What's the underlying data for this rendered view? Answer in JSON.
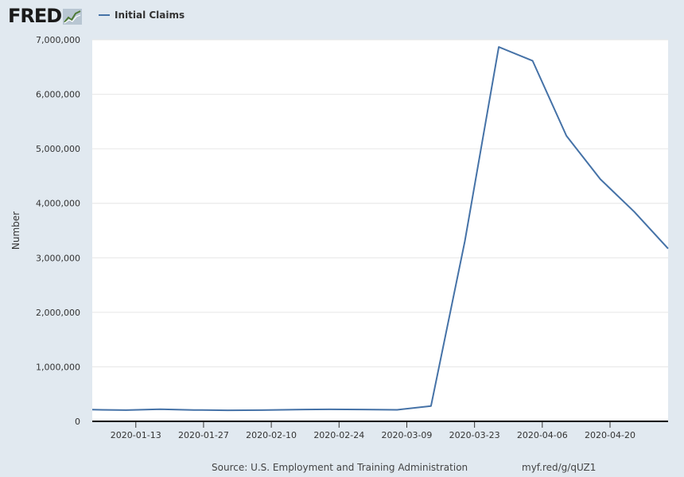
{
  "header": {
    "logo_text": "FRED",
    "logo_icon": "chart-line-icon",
    "legend_label": "Initial Claims",
    "series_color": "#4572a7"
  },
  "footer": {
    "source": "Source: U.S. Employment and Training Administration",
    "link": "myf.red/g/qUZ1"
  },
  "chart_data": {
    "type": "line",
    "title": "",
    "xlabel": "",
    "ylabel": "Number",
    "ylim": [
      0,
      7000000
    ],
    "yticks": [
      0,
      1000000,
      2000000,
      3000000,
      4000000,
      5000000,
      6000000,
      7000000
    ],
    "ytick_labels": [
      "0",
      "1,000,000",
      "2,000,000",
      "3,000,000",
      "4,000,000",
      "5,000,000",
      "6,000,000",
      "7,000,000"
    ],
    "xlim": [
      "2020-01-04",
      "2020-05-02"
    ],
    "xticks": [
      "2020-01-13",
      "2020-01-27",
      "2020-02-10",
      "2020-02-24",
      "2020-03-09",
      "2020-03-23",
      "2020-04-06",
      "2020-04-20"
    ],
    "grid": true,
    "legend": "top-left",
    "series": [
      {
        "name": "Initial Claims",
        "color": "#4572a7",
        "x": [
          "2020-01-04",
          "2020-01-11",
          "2020-01-18",
          "2020-01-25",
          "2020-02-01",
          "2020-02-08",
          "2020-02-15",
          "2020-02-22",
          "2020-02-29",
          "2020-03-07",
          "2020-03-14",
          "2020-03-21",
          "2020-03-28",
          "2020-04-04",
          "2020-04-11",
          "2020-04-18",
          "2020-04-25",
          "2020-05-02"
        ],
        "y": [
          214000,
          205000,
          223000,
          209000,
          203000,
          206000,
          216000,
          220000,
          217000,
          211000,
          282000,
          3307000,
          6867000,
          6615000,
          5237000,
          4442000,
          3846000,
          3169000
        ]
      }
    ]
  }
}
